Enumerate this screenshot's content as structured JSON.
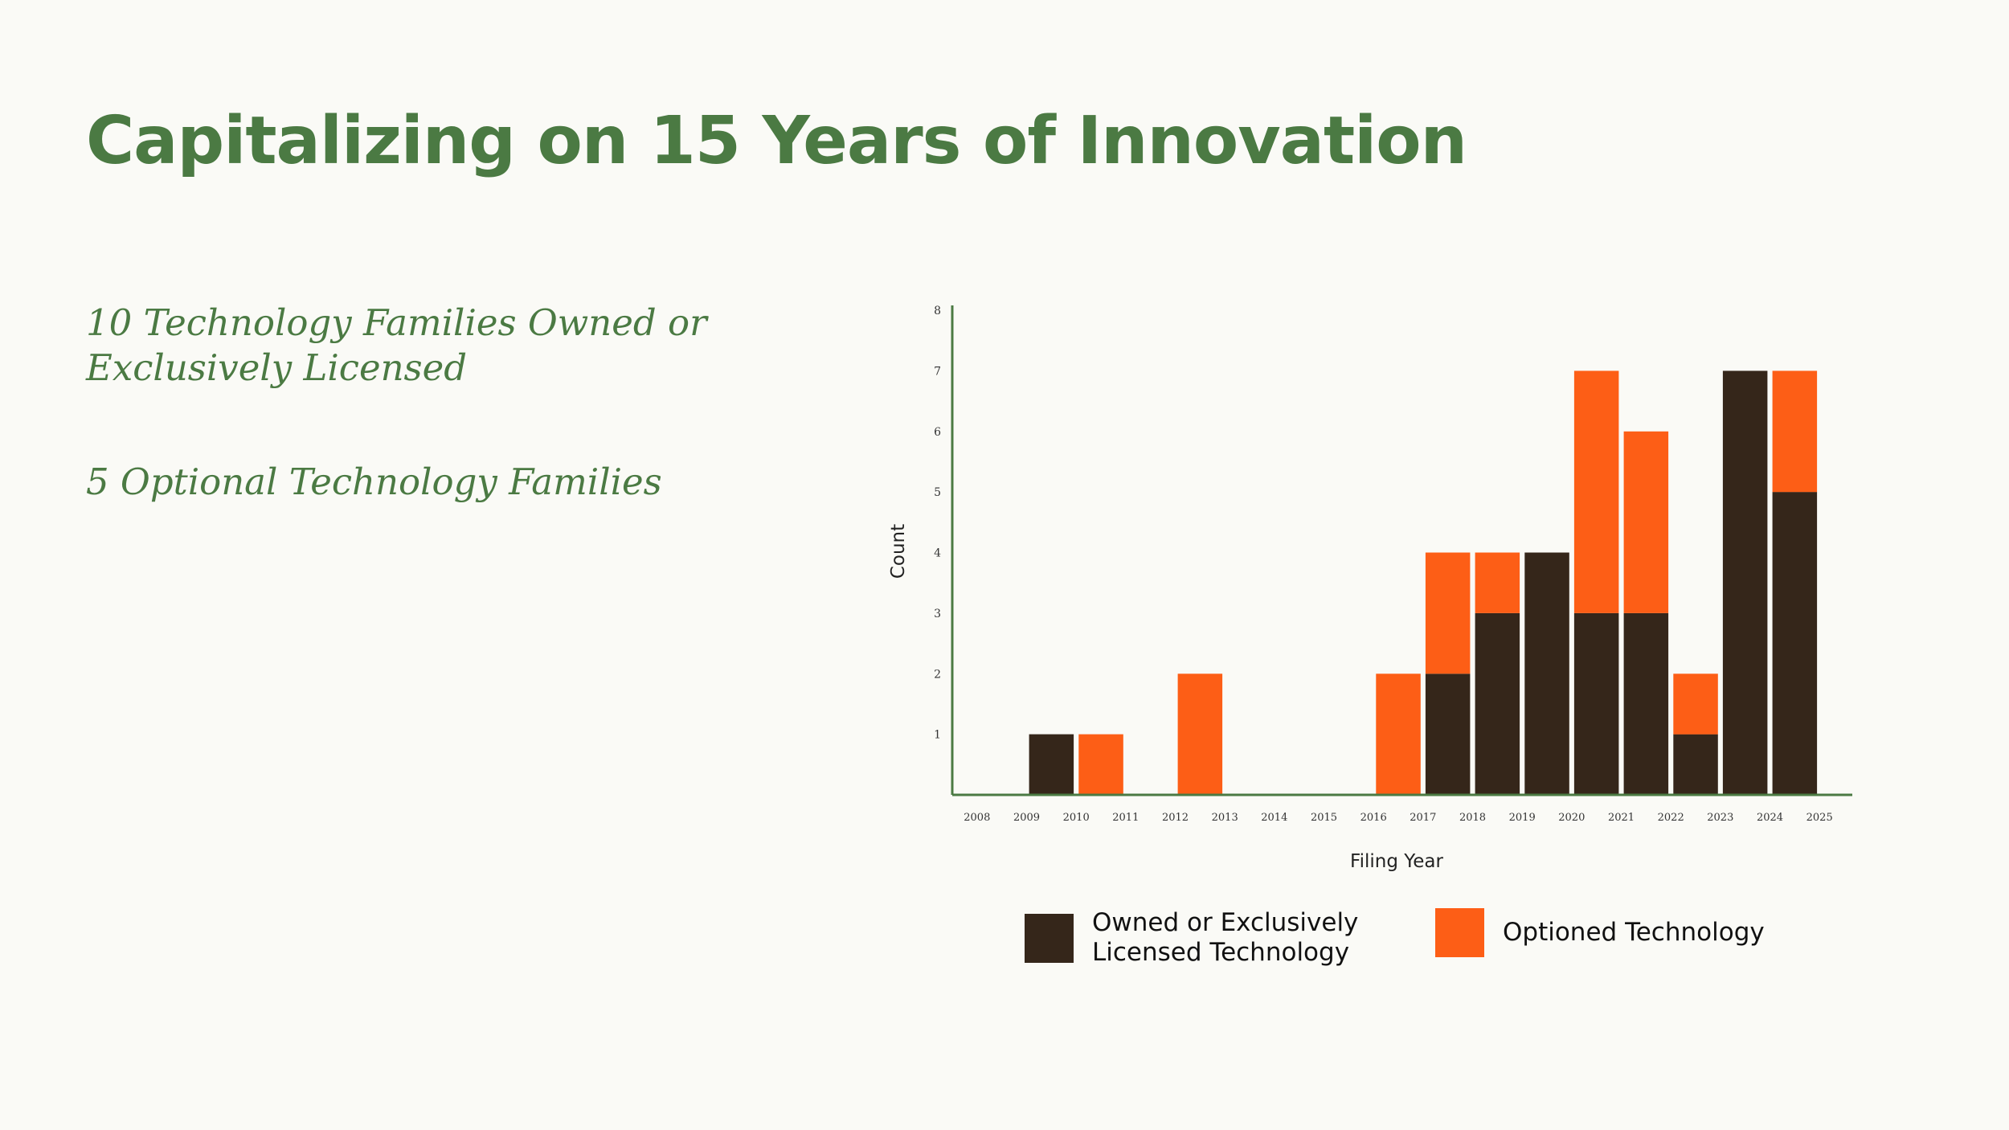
{
  "title": "Capitalizing on 15 Years of Innovation",
  "subtext": [
    "10 Technology Families Owned or Exclusively Licensed",
    "5 Optional Technology Families"
  ],
  "chart_data": {
    "type": "bar",
    "stacked": true,
    "categories": [
      "2008",
      "2009",
      "2010",
      "2011",
      "2012",
      "2013",
      "2014",
      "2015",
      "2016",
      "2017",
      "2018",
      "2019",
      "2020",
      "2021",
      "2022",
      "2023",
      "2024",
      "2025"
    ],
    "bars": [
      {
        "x": 2009.5,
        "owned": 1,
        "optioned": 0
      },
      {
        "x": 2010.5,
        "owned": 0,
        "optioned": 1
      },
      {
        "x": 2012.5,
        "owned": 0,
        "optioned": 2
      },
      {
        "x": 2016.5,
        "owned": 0,
        "optioned": 2
      },
      {
        "x": 2017.5,
        "owned": 2,
        "optioned": 2
      },
      {
        "x": 2018.5,
        "owned": 3,
        "optioned": 1
      },
      {
        "x": 2019.5,
        "owned": 4,
        "optioned": 0
      },
      {
        "x": 2020.5,
        "owned": 3,
        "optioned": 4
      },
      {
        "x": 2021.5,
        "owned": 3,
        "optioned": 3
      },
      {
        "x": 2022.5,
        "owned": 1,
        "optioned": 1
      },
      {
        "x": 2023.5,
        "owned": 7,
        "optioned": 0
      },
      {
        "x": 2024.5,
        "owned": 5,
        "optioned": 2
      }
    ],
    "series": [
      {
        "name": "Owned or Exclusively Licensed Technology",
        "key": "owned",
        "color": "#35261a"
      },
      {
        "name": "Optioned Technology",
        "key": "optioned",
        "color": "#fd5e16"
      }
    ],
    "xlabel": "Filing Year",
    "ylabel": "Count",
    "yticks": [
      1,
      2,
      3,
      4,
      5,
      6,
      7,
      8
    ],
    "ylim": [
      0,
      8
    ],
    "xlim": [
      2007.5,
      2025.5
    ],
    "axis_color": "#4b7a43",
    "legend": "bottom"
  }
}
